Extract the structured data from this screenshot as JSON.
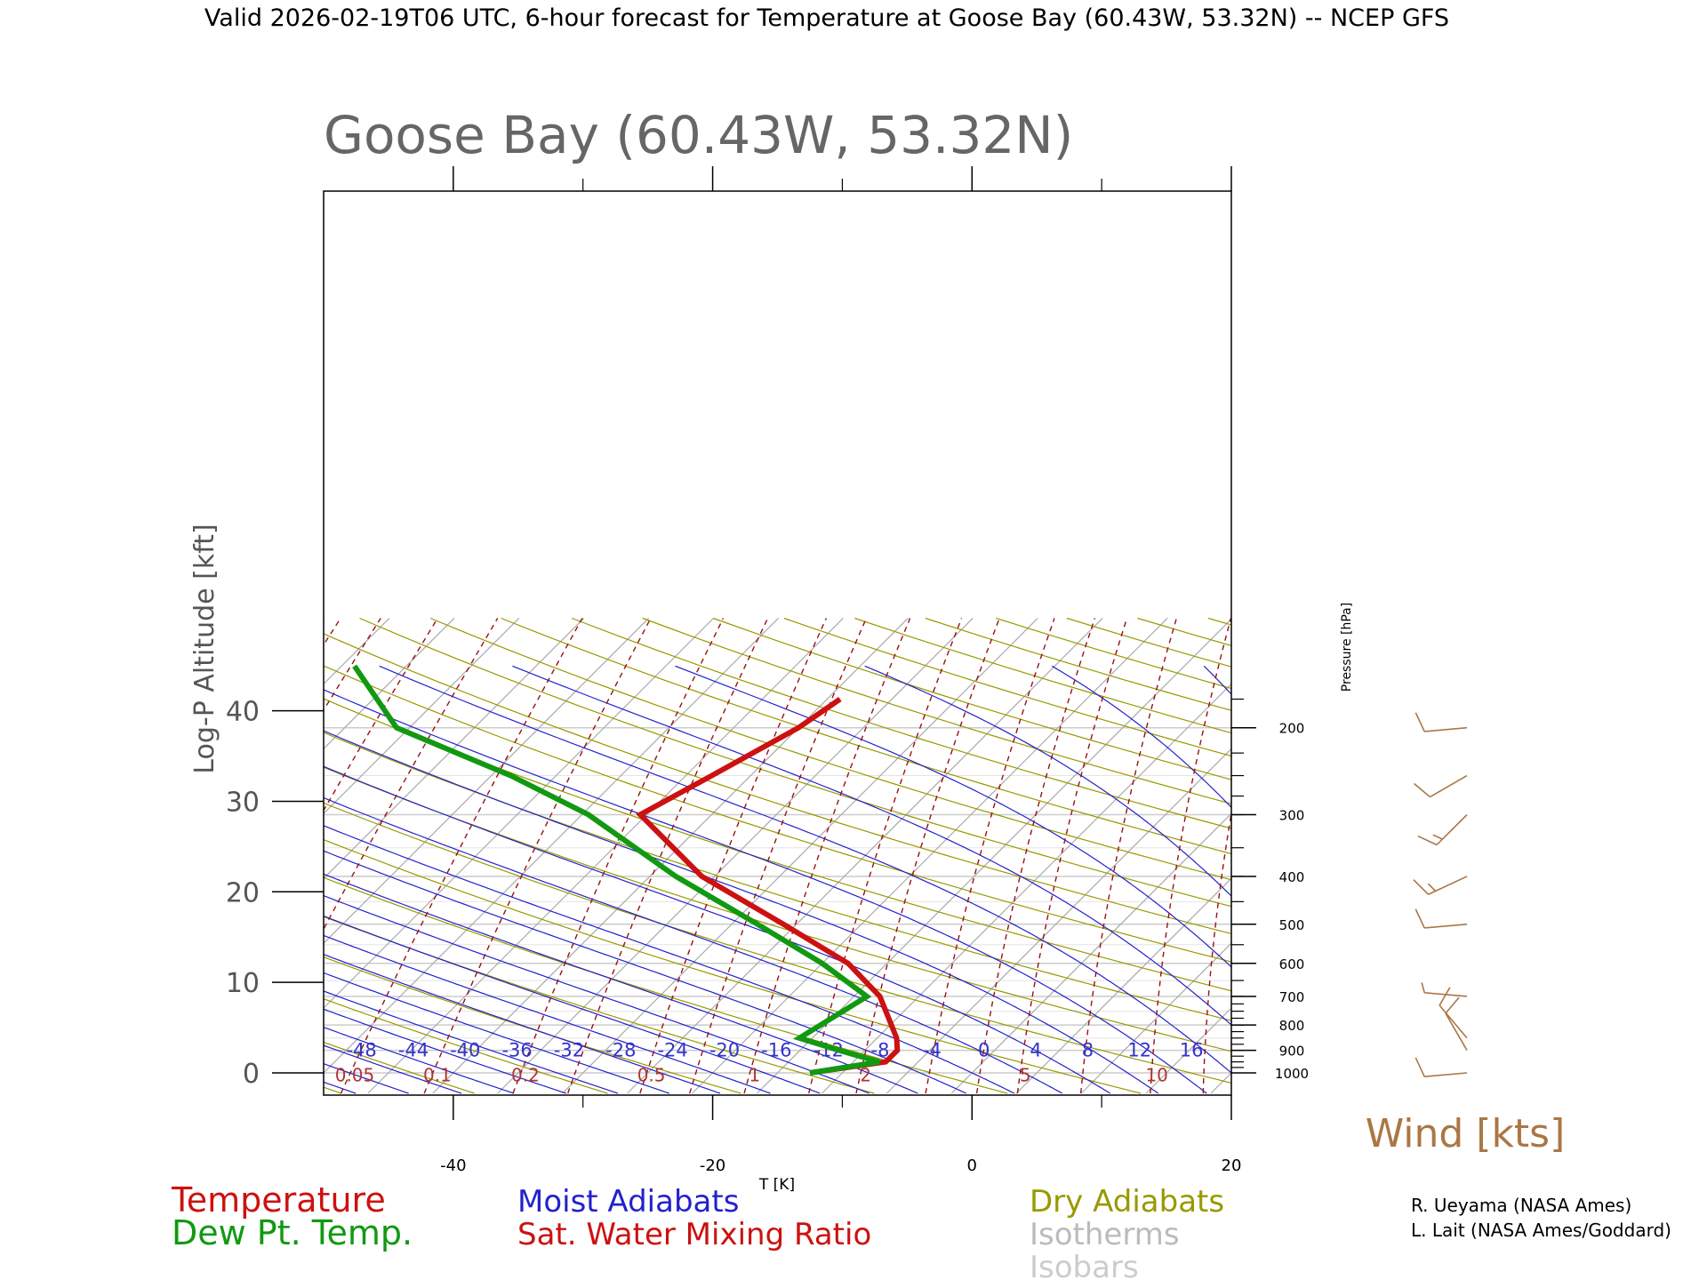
{
  "header": "Valid 2026-02-19T06 UTC, 6-hour forecast for Temperature at Goose Bay (60.43W, 53.32N) -- NCEP GFS",
  "chart_data": {
    "type": "line",
    "subtype": "skew-T log-P diagram",
    "title": "Goose Bay (60.43W, 53.32N)",
    "xlabel": "T [K]",
    "ylabel_left": "Log-P Altitude [kft]",
    "ylabel_right": "Pressure [hPa]",
    "x_ticks": [
      -40,
      -20,
      0,
      20
    ],
    "xlim": [
      -50,
      20
    ],
    "y_ticks_kft": [
      0,
      10,
      20,
      30,
      40
    ],
    "pressure_labels": [
      1000,
      900,
      800,
      700,
      600,
      500,
      400,
      300,
      200
    ],
    "pressure_minor_ticks": [
      975,
      950,
      925,
      900,
      875,
      850,
      825,
      800,
      775,
      750,
      725,
      700,
      650,
      600,
      550,
      500,
      450,
      400,
      350,
      300,
      275,
      250,
      225,
      200,
      175
    ],
    "plim_hpa": [
      1050,
      170
    ],
    "grid": true,
    "series": [
      {
        "name": "Temperature",
        "color": "#cc1111",
        "pressure": [
          1000,
          950,
          900,
          850,
          700,
          600,
          500,
          400,
          300,
          250,
          200,
          175
        ],
        "values": [
          -12.5,
          -7.5,
          -7.5,
          -8.5,
          -13.0,
          -18.0,
          -26.0,
          -36.0,
          -45.5,
          -43.0,
          -40.0,
          -39.0
        ]
      },
      {
        "name": "Dew Pt. Temp.",
        "color": "#119911",
        "pressure": [
          1000,
          950,
          900,
          850,
          700,
          600,
          500,
          400,
          300,
          250,
          200,
          150
        ],
        "values": [
          -12.5,
          -8.0,
          -12.0,
          -16.0,
          -14.0,
          -20.0,
          -28.0,
          -38.0,
          -49.5,
          -58.5,
          -71.0,
          -79.0
        ]
      }
    ],
    "moist_adiabat_labels": [
      -48,
      -44,
      -40,
      -36,
      -32,
      -28,
      -24,
      -20,
      -16,
      -12,
      -8,
      -4,
      0,
      4,
      8,
      12,
      16
    ],
    "mixing_ratio_labels": [
      "0.05",
      "0.1",
      "0.2",
      "0.5",
      "1",
      "2",
      "5",
      "10"
    ],
    "legend": {
      "col1": [
        "Temperature",
        "Dew Pt. Temp."
      ],
      "col2": [
        "Moist Adiabats",
        "Sat. Water Mixing Ratio"
      ],
      "col3": [
        "Dry Adiabats",
        "Isotherms",
        "Isobars"
      ]
    },
    "wind": {
      "label": "Wind [kts]",
      "barbs": [
        {
          "pressure": 1000,
          "speed_kt": 10,
          "dir_deg": 265
        },
        {
          "pressure": 900,
          "speed_kt": 10,
          "dir_deg": 330
        },
        {
          "pressure": 850,
          "speed_kt": 10,
          "dir_deg": 320
        },
        {
          "pressure": 700,
          "speed_kt": 5,
          "dir_deg": 275
        },
        {
          "pressure": 500,
          "speed_kt": 10,
          "dir_deg": 265
        },
        {
          "pressure": 400,
          "speed_kt": 15,
          "dir_deg": 245
        },
        {
          "pressure": 300,
          "speed_kt": 15,
          "dir_deg": 225
        },
        {
          "pressure": 250,
          "speed_kt": 10,
          "dir_deg": 240
        },
        {
          "pressure": 200,
          "speed_kt": 10,
          "dir_deg": 265
        }
      ]
    },
    "colors": {
      "temperature": "#cc1111",
      "dewpoint": "#119911",
      "moist": "#2222cc",
      "mixing": "#991111",
      "dry": "#999900",
      "isotherm": "#aaaaaa",
      "isobar": "#cccccc",
      "wind": "#aa7744"
    }
  },
  "credits": [
    "R. Ueyama (NASA Ames)",
    "L. Lait (NASA Ames/Goddard)"
  ]
}
